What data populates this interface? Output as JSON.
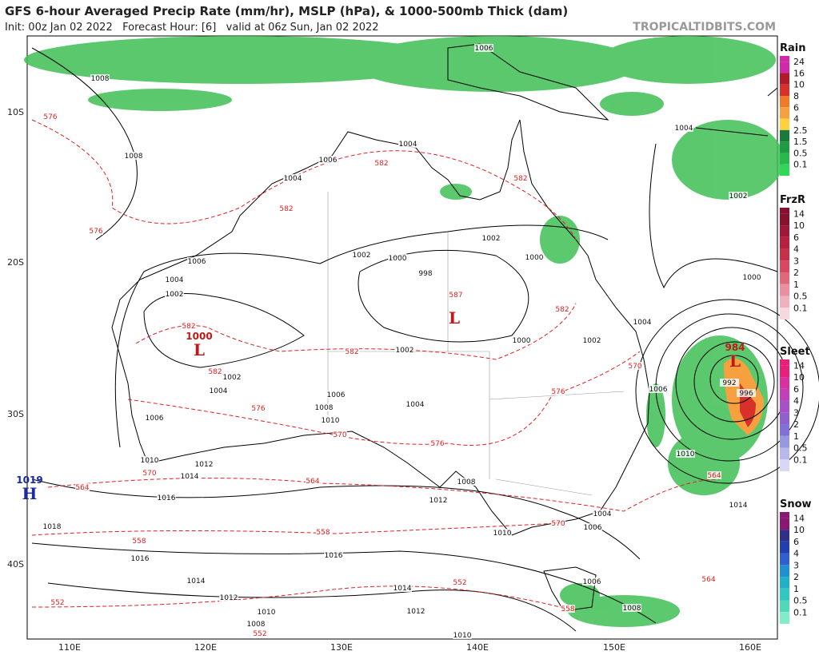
{
  "header": {
    "title": "GFS 6-hour Averaged Precip Rate (mm/hr), MSLP (hPa), & 1000-500mb Thick (dam)",
    "subtitle": "Init: 00z Jan 02 2022   Forecast Hour: [6]   valid at 06z Sun, Jan 02 2022",
    "source": "TROPICALTIDBITS.COM"
  },
  "axes": {
    "lat": [
      "10S",
      "20S",
      "30S",
      "40S"
    ],
    "lon": [
      "110E",
      "120E",
      "130E",
      "140E",
      "150E",
      "160E"
    ]
  },
  "legends": [
    {
      "name": "Rain",
      "levels": [
        "24",
        "16",
        "10",
        "8",
        "6",
        "4",
        "2.5",
        "1.5",
        "0.5",
        "0.1"
      ],
      "colors": [
        "#d02aa8",
        "#b01a2a",
        "#d8302a",
        "#f07a2a",
        "#f6a040",
        "#ffd040",
        "#1a7a3a",
        "#1f9a45",
        "#28b84e",
        "#30d85a"
      ]
    },
    {
      "name": "FrzR",
      "levels": [
        "14",
        "10",
        "6",
        "4",
        "3",
        "2",
        "1",
        "0.5",
        "0.1"
      ],
      "colors": [
        "#8a1030",
        "#a01838",
        "#b82040",
        "#c83048",
        "#d84860",
        "#e06878",
        "#e890a0",
        "#f0b0c0",
        "#f8d8e0"
      ]
    },
    {
      "name": "Sleet",
      "levels": [
        "14",
        "10",
        "6",
        "4",
        "3",
        "2",
        "1",
        "0.5",
        "0.1"
      ],
      "colors": [
        "#e8207a",
        "#d830a0",
        "#c040b8",
        "#a850c8",
        "#9060d0",
        "#8070d8",
        "#9898e0",
        "#b8b8ec",
        "#d8d8f6"
      ]
    },
    {
      "name": "Snow",
      "levels": [
        "14",
        "10",
        "6",
        "4",
        "3",
        "2",
        "1",
        "0.5",
        "0.1"
      ],
      "colors": [
        "#8a1870",
        "#30308a",
        "#2040b0",
        "#3060d0",
        "#2090d0",
        "#20b0c8",
        "#30c8c0",
        "#50d8b8",
        "#80ecc8"
      ]
    }
  ],
  "isobars": [
    "1006",
    "1008",
    "1008",
    "1004",
    "1006",
    "1004",
    "1004",
    "1002",
    "1002",
    "1002",
    "1000",
    "1000",
    "1006",
    "1004",
    "1002",
    "998",
    "1000",
    "1004",
    "1000",
    "1002",
    "1002",
    "1002",
    "1004",
    "1006",
    "1004",
    "1008",
    "1006",
    "1010",
    "1006",
    "992",
    "996",
    "1010",
    "1012",
    "1014",
    "1016",
    "1008",
    "1012",
    "1010",
    "1004",
    "1006",
    "1010",
    "1014",
    "1018",
    "1016",
    "1016",
    "1014",
    "1012",
    "1014",
    "1012",
    "1010",
    "1008",
    "1006",
    "1008",
    "1010"
  ],
  "thickness": [
    "576",
    "576",
    "582",
    "582",
    "582",
    "582",
    "582",
    "582",
    "587",
    "582",
    "576",
    "576",
    "570",
    "576",
    "570",
    "570",
    "564",
    "564",
    "564",
    "570",
    "558",
    "558",
    "552",
    "552",
    "552",
    "558",
    "564"
  ],
  "centers": [
    {
      "symbol": "H",
      "pressure": "1019"
    },
    {
      "symbol": "L",
      "pressure": "1000"
    },
    {
      "symbol": "L",
      "pressure": "984"
    },
    {
      "symbol": "L"
    }
  ]
}
